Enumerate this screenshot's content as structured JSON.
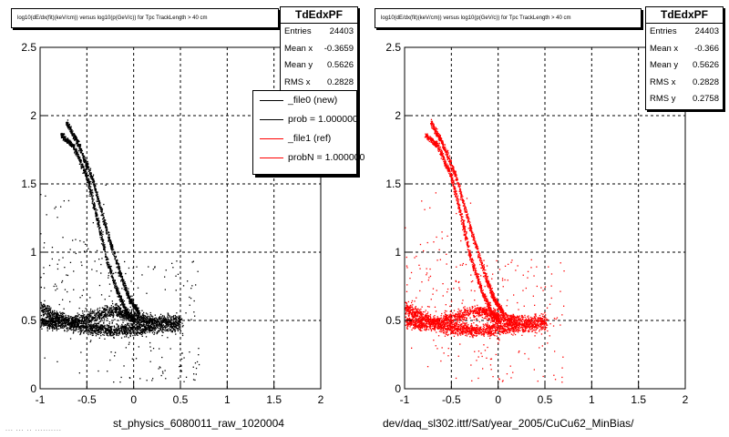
{
  "pads": [
    {
      "id": "left",
      "hist_title": "log10(dE/dx(fit)(keV/cm)) versus log10(p(GeV/c)) for Tpc TrackLength > 40 cm",
      "stats": {
        "name": "TdEdxPF",
        "rows": [
          {
            "label": "Entries",
            "value": "24403"
          },
          {
            "label": "Mean x",
            "value": "-0.3659"
          },
          {
            "label": "Mean y",
            "value": "0.5626"
          },
          {
            "label": "RMS x",
            "value": "0.2828"
          }
        ]
      },
      "file_label": "st_physics_6080011_raw_1020004",
      "marker_color": "#000000"
    },
    {
      "id": "right",
      "hist_title": "log10(dE/dx(fit)(keV/cm)) versus log10(p(GeV/c)) for Tpc TrackLength > 40 cm",
      "stats": {
        "name": "TdEdxPF",
        "rows": [
          {
            "label": "Entries",
            "value": "24403"
          },
          {
            "label": "Mean x",
            "value": "-0.366"
          },
          {
            "label": "Mean y",
            "value": "0.5626"
          },
          {
            "label": "RMS x",
            "value": "0.2828"
          },
          {
            "label": "RMS y",
            "value": "0.2758"
          }
        ]
      },
      "file_label": "dev/daq_sl302.ittf/Sat/year_2005/CuCu62_MinBias/",
      "marker_color": "#ff0000"
    }
  ],
  "legend": {
    "entries": [
      {
        "label": "_file0 (new)",
        "color": "#000000"
      },
      {
        "label": "prob = 1.000000",
        "color": "#000000"
      },
      {
        "label": "_file1 (ref)",
        "color": "#ff0000"
      },
      {
        "label": "probN = 1.000000",
        "color": "#ff0000"
      }
    ]
  },
  "footnote": "... ... .. ..........",
  "chart_data": [
    {
      "type": "scatter",
      "title": "log10(dE/dx(fit)(keV/cm)) versus log10(p(GeV/c)) for Tpc TrackLength > 40 cm",
      "xlabel": "st_physics_6080011_raw_1020004",
      "ylabel": "",
      "xlim": [
        -1,
        2
      ],
      "ylim": [
        0,
        2.5
      ],
      "xticks": [
        -1,
        -0.5,
        0,
        0.5,
        1,
        1.5,
        2
      ],
      "yticks": [
        0,
        0.5,
        1,
        1.5,
        2,
        2.5
      ],
      "xtick_labels": [
        "-1",
        "-0.5",
        "0",
        "0.5",
        "1",
        "1.5",
        "2"
      ],
      "ytick_labels": [
        "0",
        "0.5",
        "1",
        "1.5",
        "2",
        "2.5"
      ],
      "grid": true,
      "series": [
        {
          "name": "_file0 (new)",
          "color": "#000000",
          "entries": 24403,
          "bands": [
            {
              "points": [
                [
                  -0.78,
                  1.86
                ],
                [
                  -0.65,
                  1.78
                ],
                [
                  -0.5,
                  1.55
                ],
                [
                  -0.4,
                  1.27
                ],
                [
                  -0.3,
                  0.97
                ],
                [
                  -0.18,
                  0.72
                ],
                [
                  -0.08,
                  0.57
                ],
                [
                  0.0,
                  0.5
                ]
              ]
            },
            {
              "points": [
                [
                  -0.72,
                  1.95
                ],
                [
                  -0.6,
                  1.8
                ],
                [
                  -0.45,
                  1.55
                ],
                [
                  -0.3,
                  1.18
                ],
                [
                  -0.15,
                  0.85
                ],
                [
                  -0.05,
                  0.66
                ],
                [
                  0.05,
                  0.56
                ]
              ]
            },
            {
              "points": [
                [
                  -1.0,
                  0.6
                ],
                [
                  -0.8,
                  0.52
                ],
                [
                  -0.6,
                  0.46
                ],
                [
                  -0.4,
                  0.44
                ],
                [
                  -0.2,
                  0.43
                ],
                [
                  0.0,
                  0.44
                ],
                [
                  0.2,
                  0.45
                ],
                [
                  0.5,
                  0.47
                ]
              ]
            },
            {
              "points": [
                [
                  -1.0,
                  0.5
                ],
                [
                  -0.8,
                  0.47
                ],
                [
                  -0.5,
                  0.52
                ],
                [
                  -0.2,
                  0.58
                ],
                [
                  0.0,
                  0.52
                ],
                [
                  0.2,
                  0.5
                ],
                [
                  0.5,
                  0.5
                ]
              ]
            }
          ]
        }
      ]
    },
    {
      "type": "scatter",
      "title": "log10(dE/dx(fit)(keV/cm)) versus log10(p(GeV/c)) for Tpc TrackLength > 40 cm",
      "xlabel": "dev/daq_sl302.ittf/Sat/year_2005/CuCu62_MinBias/",
      "ylabel": "",
      "xlim": [
        -1,
        2
      ],
      "ylim": [
        0,
        2.5
      ],
      "xticks": [
        -1,
        -0.5,
        0,
        0.5,
        1,
        1.5,
        2
      ],
      "yticks": [
        0,
        0.5,
        1,
        1.5,
        2,
        2.5
      ],
      "xtick_labels": [
        "-1",
        "-0.5",
        "0",
        "0.5",
        "1",
        "1.5",
        "2"
      ],
      "ytick_labels": [
        "0",
        "0.5",
        "1",
        "1.5",
        "2",
        "2.5"
      ],
      "grid": true,
      "series": [
        {
          "name": "_file1 (ref)",
          "color": "#ff0000",
          "entries": 24403,
          "bands": [
            {
              "points": [
                [
                  -0.78,
                  1.86
                ],
                [
                  -0.65,
                  1.78
                ],
                [
                  -0.5,
                  1.55
                ],
                [
                  -0.4,
                  1.27
                ],
                [
                  -0.3,
                  0.97
                ],
                [
                  -0.18,
                  0.72
                ],
                [
                  -0.08,
                  0.57
                ],
                [
                  0.0,
                  0.5
                ]
              ]
            },
            {
              "points": [
                [
                  -0.72,
                  1.95
                ],
                [
                  -0.6,
                  1.8
                ],
                [
                  -0.45,
                  1.55
                ],
                [
                  -0.3,
                  1.18
                ],
                [
                  -0.15,
                  0.85
                ],
                [
                  -0.05,
                  0.66
                ],
                [
                  0.05,
                  0.56
                ]
              ]
            },
            {
              "points": [
                [
                  -1.0,
                  0.6
                ],
                [
                  -0.8,
                  0.52
                ],
                [
                  -0.6,
                  0.46
                ],
                [
                  -0.4,
                  0.44
                ],
                [
                  -0.2,
                  0.43
                ],
                [
                  0.0,
                  0.44
                ],
                [
                  0.2,
                  0.45
                ],
                [
                  0.5,
                  0.47
                ]
              ]
            },
            {
              "points": [
                [
                  -1.0,
                  0.5
                ],
                [
                  -0.8,
                  0.47
                ],
                [
                  -0.5,
                  0.52
                ],
                [
                  -0.2,
                  0.58
                ],
                [
                  0.0,
                  0.52
                ],
                [
                  0.2,
                  0.5
                ],
                [
                  0.5,
                  0.5
                ]
              ]
            }
          ]
        }
      ]
    }
  ]
}
